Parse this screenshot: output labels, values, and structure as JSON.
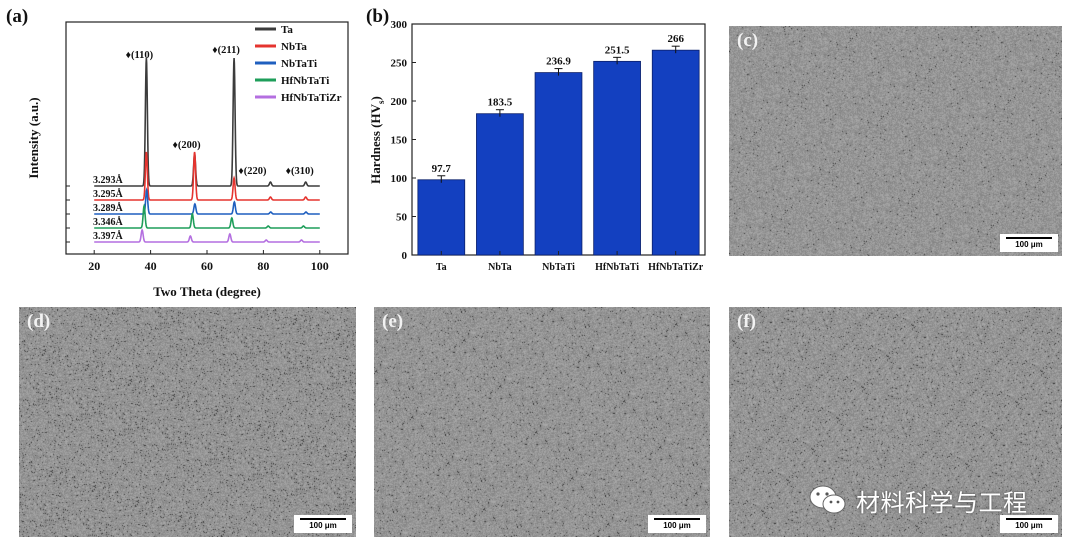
{
  "panels": {
    "a": "(a)",
    "b": "(b)",
    "c": "(c)",
    "d": "(d)",
    "e": "(e)",
    "f": "(f)"
  },
  "xrd": {
    "xlabel": "Two Theta (degree)",
    "ylabel": "Intensity (a.u.)",
    "xticks": [
      "20",
      "40",
      "60",
      "80",
      "100"
    ],
    "legend": [
      {
        "name": "Ta",
        "color": "#3c3c3c"
      },
      {
        "name": "NbTa",
        "color": "#e5342f"
      },
      {
        "name": "NbTaTi",
        "color": "#1f5fbf"
      },
      {
        "name": "HfNbTaTi",
        "color": "#1e9e5a"
      },
      {
        "name": "HfNbTaTiZr",
        "color": "#b46fe0"
      }
    ],
    "lattice": [
      "3.293Å",
      "3.295Å",
      "3.289Å",
      "3.346Å",
      "3.397Å"
    ],
    "peaks": [
      {
        "label": "♦(110)",
        "two_theta": 38.5
      },
      {
        "label": "♦(200)",
        "two_theta": 55.6
      },
      {
        "label": "♦(211)",
        "two_theta": 69.6
      },
      {
        "label": "♦(220)",
        "two_theta": 82.5
      },
      {
        "label": "♦(310)",
        "two_theta": 95.0
      }
    ]
  },
  "chart_data": {
    "type": "bar",
    "categories": [
      "Ta",
      "NbTa",
      "NbTaTi",
      "HfNbTaTi",
      "HfNbTaTiZr"
    ],
    "values": [
      97.7,
      183.5,
      236.9,
      251.5,
      266
    ],
    "value_labels": [
      "97.7",
      "183.5",
      "236.9",
      "251.5",
      "266"
    ],
    "ylabel": "Hardness (HVs)",
    "ylabel_main": "Hardness (HV",
    "ylabel_sub": "s",
    "ylabel_close": ")",
    "ylim": [
      0,
      300
    ],
    "yticks": [
      "0",
      "50",
      "100",
      "150",
      "200",
      "250",
      "300"
    ],
    "bar_color": "#1340c0"
  },
  "micrographs": {
    "scale_label": "100 μm"
  },
  "watermark": {
    "text": "材料科学与工程"
  }
}
